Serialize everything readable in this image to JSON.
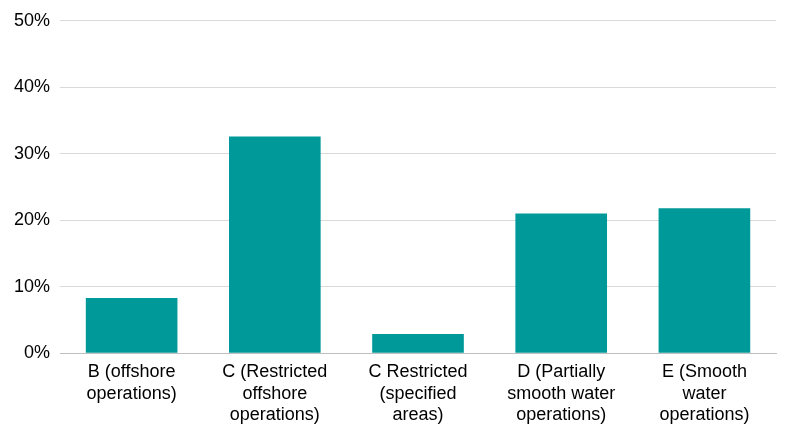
{
  "chart_data": {
    "type": "bar",
    "categories": [
      "B (offshore operations)",
      "C (Restricted offshore operations)",
      "C Restricted (specified areas)",
      "D (Partially smooth water operations)",
      "E (Smooth water operations)"
    ],
    "values": [
      8.3,
      32.6,
      2.9,
      21.0,
      21.8
    ],
    "color": "#009999",
    "ylim": [
      0,
      50
    ],
    "yticks": [
      {
        "value": 0,
        "label": "0%"
      },
      {
        "value": 10,
        "label": "10%"
      },
      {
        "value": 20,
        "label": "20%"
      },
      {
        "value": 30,
        "label": "30%"
      },
      {
        "value": 40,
        "label": "40%"
      },
      {
        "value": 50,
        "label": "50%"
      }
    ],
    "grid": true
  }
}
